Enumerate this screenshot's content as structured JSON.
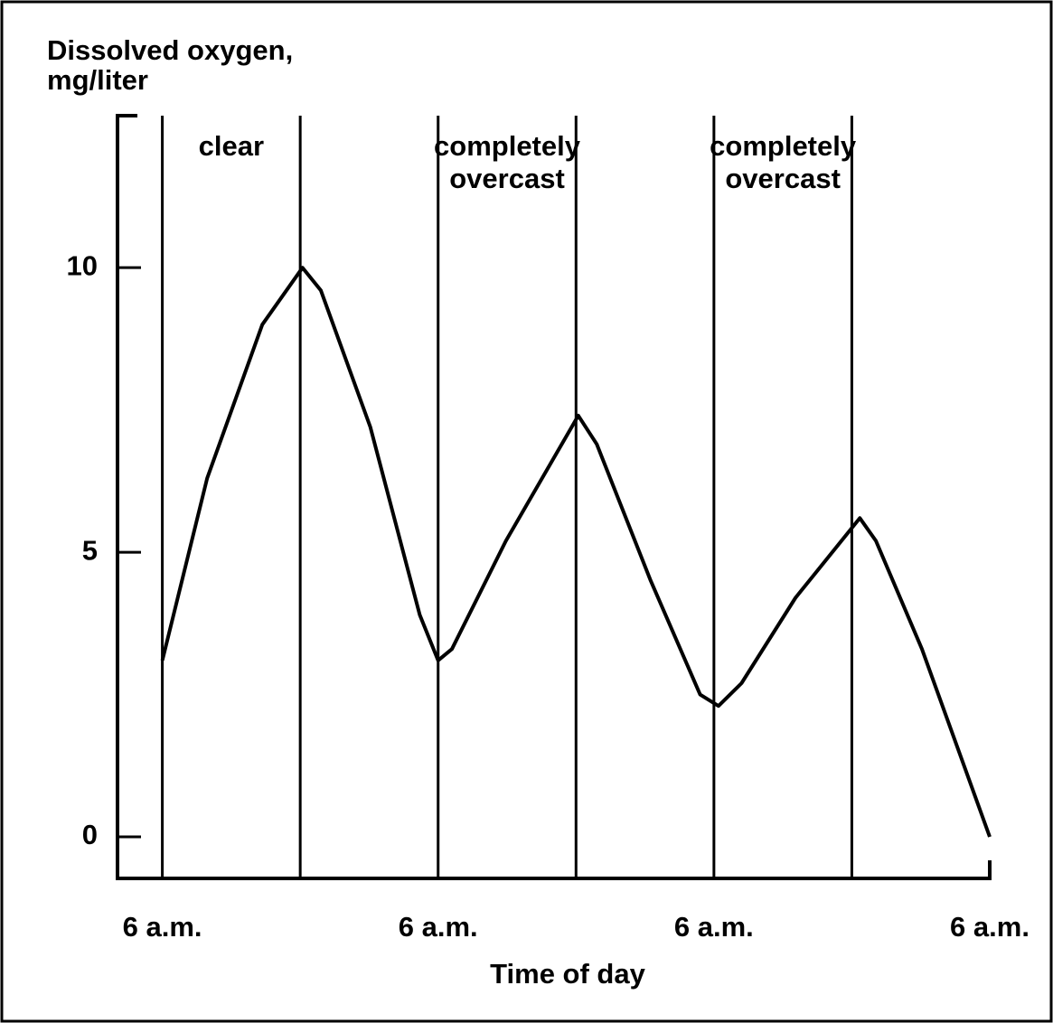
{
  "chart_data": {
    "type": "line",
    "ylabel": [
      "Dissolved oxygen,",
      "mg/liter"
    ],
    "xlabel": "Time of day",
    "annotations": [
      [
        "clear"
      ],
      [
        "completely",
        "overcast"
      ],
      [
        "completely",
        "overcast"
      ]
    ],
    "vlines": [
      0,
      12,
      24,
      36,
      48,
      60
    ],
    "x": [
      0,
      3.9,
      8.7,
      12.2,
      13.8,
      18.1,
      22.4,
      24,
      25.2,
      29.9,
      36.2,
      37.8,
      42.5,
      46.8,
      48.4,
      50.4,
      55.1,
      60.7,
      62.1,
      66.1,
      72
    ],
    "values": [
      3.1,
      6.3,
      9.0,
      10.0,
      9.6,
      7.2,
      3.9,
      3.1,
      3.3,
      5.2,
      7.4,
      6.9,
      4.5,
      2.5,
      2.3,
      2.7,
      4.2,
      5.6,
      5.2,
      3.3,
      0
    ],
    "color": "#000000",
    "xlim": [
      -3.9,
      72
    ],
    "xticks": [
      {
        "value": 0,
        "label": "6 a.m."
      },
      {
        "value": 24,
        "label": "6 a.m."
      },
      {
        "value": 48,
        "label": "6 a.m."
      },
      {
        "value": 72,
        "label": "6 a.m."
      }
    ],
    "ylim": [
      -0.73,
      12.67
    ],
    "yticks": [
      0,
      5,
      10
    ]
  }
}
